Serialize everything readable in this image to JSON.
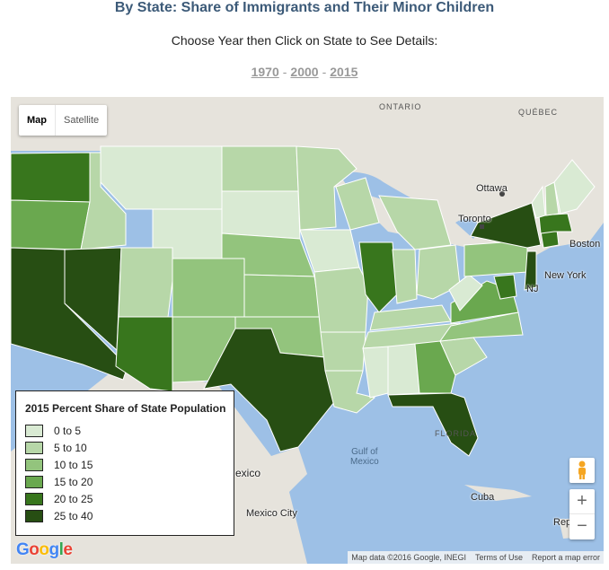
{
  "header": {
    "title": "By State: Share of Immigrants and Their Minor Children",
    "instruction": "Choose Year then Click on State to See Details:",
    "years": [
      "1970",
      "2000",
      "2015"
    ],
    "separator": "-"
  },
  "map_controls": {
    "map_label": "Map",
    "satellite_label": "Satellite",
    "zoom_in": "+",
    "zoom_out": "−"
  },
  "map_labels": {
    "ontario": "ONTARIO",
    "quebec": "QUÉBEC",
    "ottawa": "Ottawa",
    "toronto": "Toronto",
    "boston": "Boston",
    "new_york": "New York",
    "nj": "NJ",
    "gulf": "Gulf of\nMexico",
    "mexico": "exico",
    "mexico_city": "Mexico City",
    "cuba": "Cuba",
    "republic": "Rep",
    "florida": "FLORIDA"
  },
  "legend": {
    "title": "2015 Percent Share of State Population",
    "items": [
      {
        "label": "0 to 5",
        "color": "#d9ead3"
      },
      {
        "label": "5 to 10",
        "color": "#b7d7a8"
      },
      {
        "label": "10 to 15",
        "color": "#93c47d"
      },
      {
        "label": "15 to 20",
        "color": "#6aa84f"
      },
      {
        "label": "20 to 25",
        "color": "#38761d"
      },
      {
        "label": "25 to 40",
        "color": "#274e13"
      }
    ]
  },
  "footer": {
    "logo": "Google",
    "map_data": "Map data ©2016 Google, INEGI",
    "terms": "Terms of Use",
    "report": "Report a map error"
  }
}
